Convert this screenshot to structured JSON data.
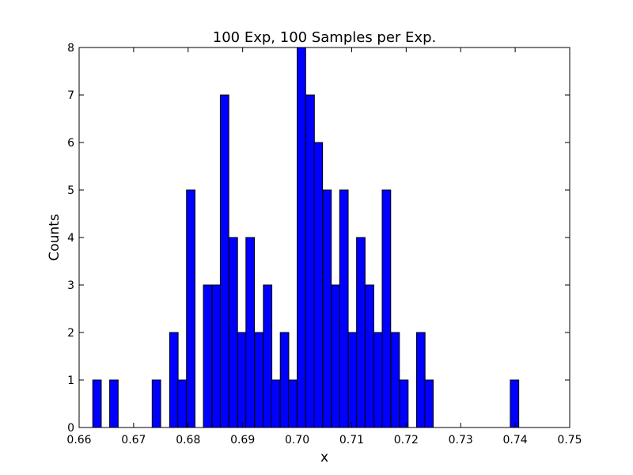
{
  "chart_data": {
    "type": "bar",
    "title": "100 Exp, 100 Samples per Exp.",
    "xlabel": "x",
    "ylabel": "Counts",
    "xlim": [
      0.66,
      0.75
    ],
    "ylim": [
      0,
      8
    ],
    "x_ticks": [
      {
        "value": 0.66,
        "label": "0.66"
      },
      {
        "value": 0.67,
        "label": "0.67"
      },
      {
        "value": 0.68,
        "label": "0.68"
      },
      {
        "value": 0.69,
        "label": "0.69"
      },
      {
        "value": 0.7,
        "label": "0.70"
      },
      {
        "value": 0.71,
        "label": "0.71"
      },
      {
        "value": 0.72,
        "label": "0.72"
      },
      {
        "value": 0.73,
        "label": "0.73"
      },
      {
        "value": 0.74,
        "label": "0.74"
      },
      {
        "value": 0.75,
        "label": "0.75"
      }
    ],
    "y_ticks": [
      {
        "value": 0,
        "label": "0"
      },
      {
        "value": 1,
        "label": "1"
      },
      {
        "value": 2,
        "label": "2"
      },
      {
        "value": 3,
        "label": "3"
      },
      {
        "value": 4,
        "label": "4"
      },
      {
        "value": 5,
        "label": "5"
      },
      {
        "value": 6,
        "label": "6"
      },
      {
        "value": 7,
        "label": "7"
      },
      {
        "value": 8,
        "label": "8"
      }
    ],
    "bin_width": 0.00156,
    "bins": [
      {
        "x": 0.6625,
        "count": 1
      },
      {
        "x": 0.6656,
        "count": 1
      },
      {
        "x": 0.6734,
        "count": 1
      },
      {
        "x": 0.6766,
        "count": 2
      },
      {
        "x": 0.6781,
        "count": 1
      },
      {
        "x": 0.6797,
        "count": 5
      },
      {
        "x": 0.6828,
        "count": 3
      },
      {
        "x": 0.6844,
        "count": 3
      },
      {
        "x": 0.6859,
        "count": 7
      },
      {
        "x": 0.6875,
        "count": 4
      },
      {
        "x": 0.6891,
        "count": 2
      },
      {
        "x": 0.6906,
        "count": 4
      },
      {
        "x": 0.6922,
        "count": 2
      },
      {
        "x": 0.6938,
        "count": 3
      },
      {
        "x": 0.6953,
        "count": 1
      },
      {
        "x": 0.6969,
        "count": 2
      },
      {
        "x": 0.6984,
        "count": 1
      },
      {
        "x": 0.7,
        "count": 8
      },
      {
        "x": 0.7016,
        "count": 7
      },
      {
        "x": 0.7031,
        "count": 6
      },
      {
        "x": 0.7047,
        "count": 5
      },
      {
        "x": 0.7063,
        "count": 3
      },
      {
        "x": 0.7078,
        "count": 5
      },
      {
        "x": 0.7094,
        "count": 2
      },
      {
        "x": 0.7109,
        "count": 4
      },
      {
        "x": 0.7125,
        "count": 3
      },
      {
        "x": 0.7141,
        "count": 2
      },
      {
        "x": 0.7156,
        "count": 5
      },
      {
        "x": 0.7172,
        "count": 2
      },
      {
        "x": 0.7188,
        "count": 1
      },
      {
        "x": 0.7219,
        "count": 2
      },
      {
        "x": 0.7234,
        "count": 1
      },
      {
        "x": 0.7391,
        "count": 1
      }
    ],
    "bar_color": "#0000ff",
    "edge_color": "#000000",
    "grid": false,
    "legend": "none"
  }
}
